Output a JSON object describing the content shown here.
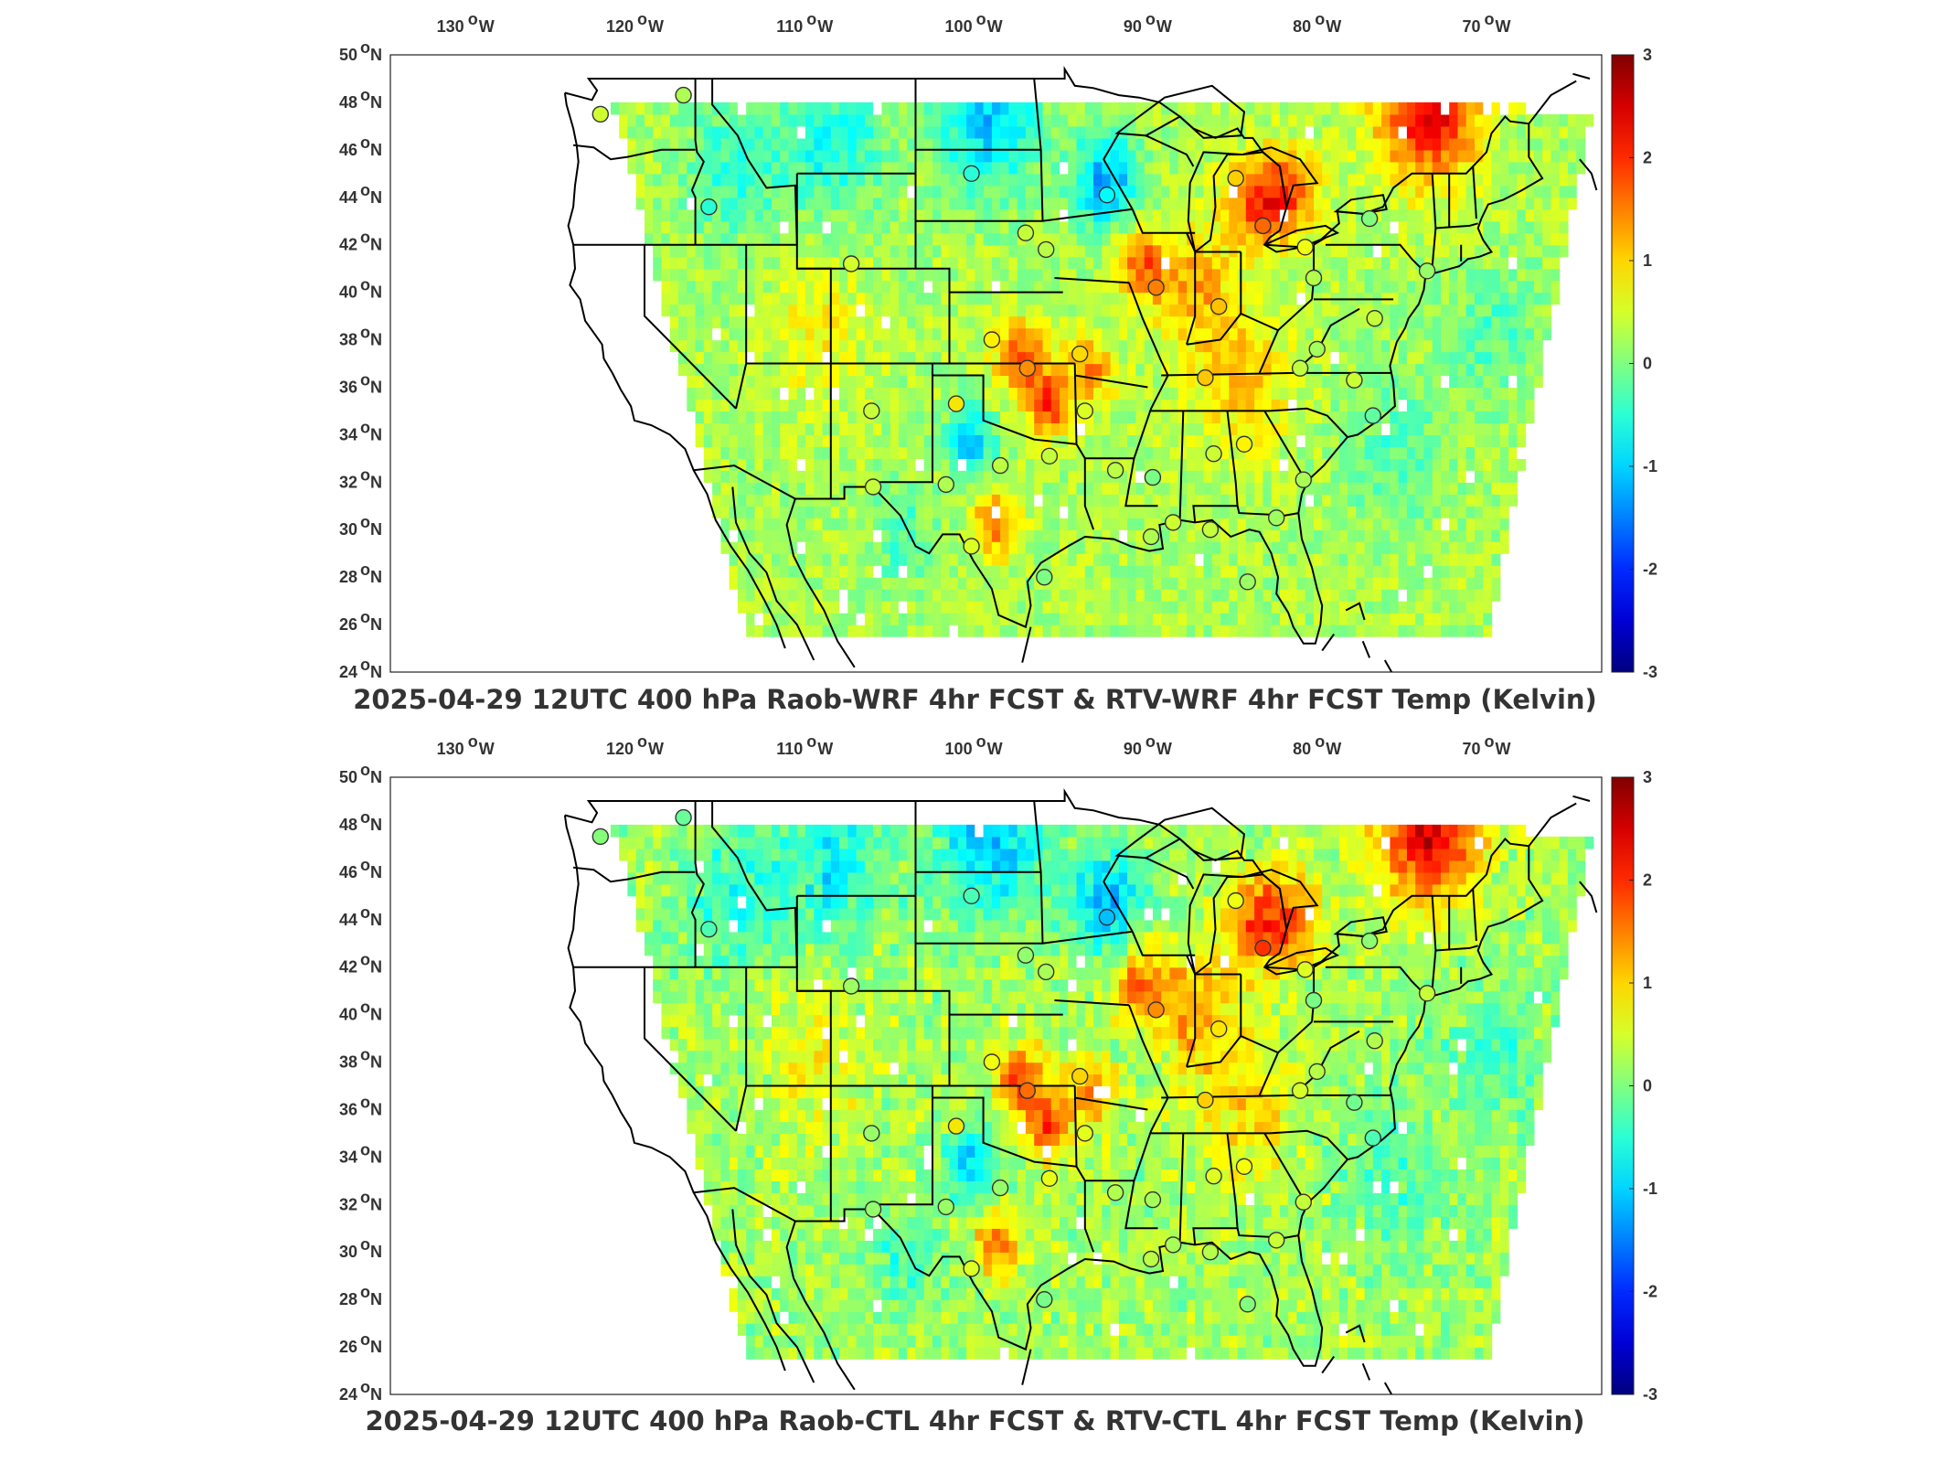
{
  "map": {
    "lon_ticks": [
      "130",
      "120",
      "110",
      "100",
      "90",
      "80",
      "70"
    ],
    "lon_suffix": "W",
    "lat_ticks": [
      "50",
      "48",
      "46",
      "44",
      "42",
      "40",
      "38",
      "36",
      "34",
      "32",
      "30",
      "28",
      "26",
      "24"
    ],
    "lat_suffix": "N",
    "colorbar_ticks": [
      "3",
      "2",
      "1",
      "0",
      "-1",
      "-2",
      "-3"
    ],
    "colorbar_range": [
      -3,
      3
    ],
    "colormap": "jet",
    "colors": {
      "map_background": "#ffffff",
      "boundaries": "#000000",
      "field_base": "#7ff06a",
      "missing_data": "#ffffff"
    }
  },
  "panels": [
    {
      "title": "2025-04-29 12UTC 400 hPa Raob-WRF 4hr FCST & RTV-WRF 4hr FCST Temp (Kelvin)"
    },
    {
      "title": "2025-04-29 12UTC 400 hPa Raob-CTL 4hr FCST & RTV-CTL 4hr FCST Temp (Kelvin)"
    }
  ]
}
